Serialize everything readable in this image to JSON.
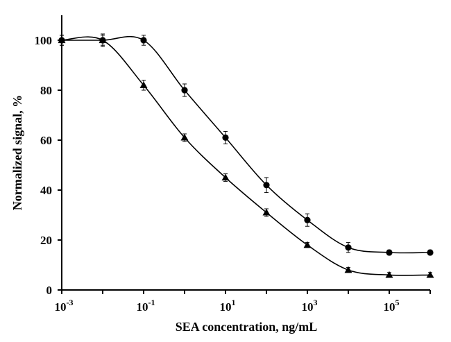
{
  "chart_data": {
    "type": "scatter",
    "title": "",
    "xlabel": "SEA concentration, ng/mL",
    "ylabel": "Normalized signal, %",
    "x_scale": "log",
    "xlim": [
      0.001,
      1000000
    ],
    "ylim": [
      0,
      110
    ],
    "x_ticks": [
      {
        "value": 0.001,
        "base": "10",
        "exp": "-3"
      },
      {
        "value": 0.1,
        "base": "10",
        "exp": "-1"
      },
      {
        "value": 10,
        "base": "10",
        "exp": "1"
      },
      {
        "value": 1000,
        "base": "10",
        "exp": "3"
      },
      {
        "value": 100000,
        "base": "10",
        "exp": "5"
      }
    ],
    "y_ticks": [
      0,
      20,
      40,
      60,
      80,
      100
    ],
    "grid": false,
    "legend": "none",
    "series": [
      {
        "marker": "circle",
        "color": "#000000",
        "x": [
          0.001,
          0.01,
          0.1,
          1,
          10,
          100,
          1000,
          10000,
          100000,
          1000000
        ],
        "y": [
          100,
          100,
          100,
          80,
          61,
          42,
          28,
          17,
          15,
          15
        ],
        "error": [
          2,
          2.5,
          2,
          2.5,
          2.5,
          3,
          2.5,
          2,
          1,
          1
        ]
      },
      {
        "marker": "triangle",
        "color": "#000000",
        "x": [
          0.001,
          0.01,
          0.1,
          1,
          10,
          100,
          1000,
          10000,
          100000,
          1000000
        ],
        "y": [
          100,
          100,
          82,
          61,
          45,
          31,
          18,
          8,
          6,
          6
        ],
        "error": [
          2,
          2,
          2,
          1.5,
          1.5,
          1.5,
          1,
          1,
          1,
          1
        ]
      }
    ]
  }
}
